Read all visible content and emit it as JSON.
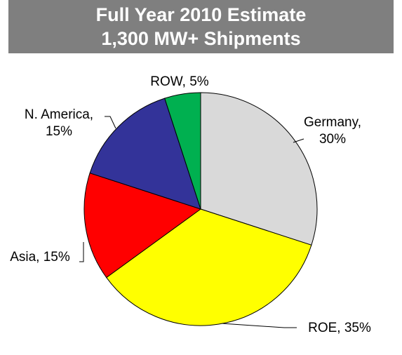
{
  "chart_data": {
    "type": "pie",
    "title": "Full Year 2010 Estimate",
    "subtitle": "1,300 MW+ Shipments",
    "categories": [
      "Germany",
      "ROE",
      "Asia",
      "N. America",
      "ROW"
    ],
    "values": [
      30,
      35,
      15,
      15,
      5
    ],
    "unit": "%",
    "colors": [
      "#d9d9d9",
      "#ffff00",
      "#ff0000",
      "#333399",
      "#00b050"
    ],
    "labels": [
      {
        "line1": "Germany,",
        "line2": "30%"
      },
      {
        "line1": "ROE, 35%",
        "line2": ""
      },
      {
        "line1": "Asia, 15%",
        "line2": ""
      },
      {
        "line1": "N. America,",
        "line2": "15%"
      },
      {
        "line1": "ROW, 5%",
        "line2": ""
      }
    ],
    "start_angle_deg": 0,
    "direction": "clockwise",
    "legend": "none"
  }
}
